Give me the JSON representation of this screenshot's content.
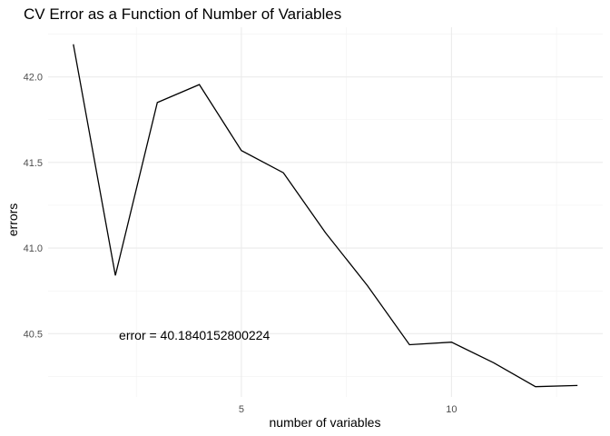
{
  "chart_data": {
    "type": "line",
    "title": "CV Error as a Function of Number of Variables",
    "xlabel": "number of variables",
    "ylabel": "errors",
    "x": [
      1,
      2,
      3,
      4,
      5,
      6,
      7,
      8,
      9,
      10,
      11,
      12,
      13
    ],
    "series": [
      {
        "values": [
          42.19,
          40.84,
          41.85,
          41.955,
          41.57,
          41.44,
          41.09,
          40.78,
          40.435,
          40.45,
          40.33,
          40.19,
          40.197
        ],
        "color": "#000000"
      }
    ],
    "xlim": [
      0.4,
      13.6
    ],
    "ylim": [
      40.13,
      42.29
    ],
    "x_ticks": [
      5,
      10
    ],
    "x_tick_labels": [
      "5",
      "10"
    ],
    "y_ticks": [
      40.5,
      41.0,
      41.5,
      42.0
    ],
    "y_tick_labels": [
      "40.5",
      "41.0",
      "41.5",
      "42.0"
    ],
    "grid": true,
    "annotation": {
      "text": "error =  40.1840152800224",
      "x": 2,
      "y": 40.49
    }
  }
}
